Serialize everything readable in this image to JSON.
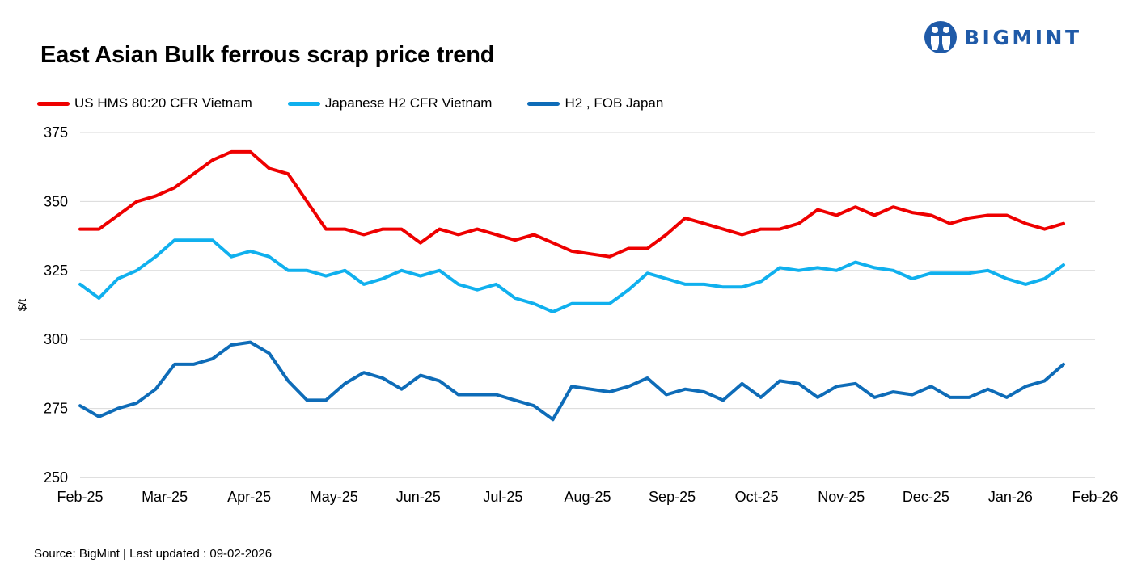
{
  "title": "East Asian Bulk ferrous scrap price trend",
  "logo": {
    "text": "BIGMINT",
    "color": "#1f5aa8"
  },
  "source": "Source: BigMint  | Last updated : 09-02-2026",
  "chart_data": {
    "type": "line",
    "title": "East Asian Bulk ferrous scrap price trend",
    "xlabel": "",
    "ylabel": "$/t",
    "ylim": [
      250,
      375
    ],
    "yticks": [
      250,
      275,
      300,
      325,
      350,
      375
    ],
    "grid": true,
    "legend_position": "top-left",
    "month_labels": [
      "Feb-25",
      "Mar-25",
      "Apr-25",
      "May-25",
      "Jun-25",
      "Jul-25",
      "Aug-25",
      "Sep-25",
      "Oct-25",
      "Nov-25",
      "Dec-25",
      "Jan-26",
      "Feb-26"
    ],
    "series": [
      {
        "name": "US HMS 80:20 CFR Vietnam",
        "color": "#ee0000",
        "values": [
          340,
          340,
          345,
          350,
          352,
          355,
          360,
          365,
          368,
          368,
          362,
          360,
          350,
          340,
          340,
          338,
          340,
          340,
          335,
          340,
          338,
          340,
          338,
          336,
          338,
          335,
          332,
          331,
          330,
          333,
          333,
          338,
          344,
          342,
          340,
          338,
          340,
          340,
          342,
          347,
          345,
          348,
          345,
          348,
          346,
          345,
          342,
          344,
          345,
          345,
          342,
          340,
          342
        ]
      },
      {
        "name": "Japanese H2 CFR Vietnam",
        "color": "#10b0ee",
        "values": [
          320,
          315,
          322,
          325,
          330,
          336,
          336,
          336,
          330,
          332,
          330,
          325,
          325,
          323,
          325,
          320,
          322,
          325,
          323,
          325,
          320,
          318,
          320,
          315,
          313,
          310,
          313,
          313,
          313,
          318,
          324,
          322,
          320,
          320,
          319,
          319,
          321,
          326,
          325,
          326,
          325,
          328,
          326,
          325,
          322,
          324,
          324,
          324,
          325,
          322,
          320,
          322,
          327
        ]
      },
      {
        "name": "H2 , FOB Japan",
        "color": "#0e6cb8",
        "values": [
          276,
          272,
          275,
          277,
          282,
          291,
          291,
          293,
          298,
          299,
          295,
          285,
          278,
          278,
          284,
          288,
          286,
          282,
          287,
          285,
          280,
          280,
          280,
          278,
          276,
          271,
          283,
          282,
          281,
          283,
          286,
          280,
          282,
          281,
          278,
          284,
          279,
          285,
          284,
          279,
          283,
          284,
          279,
          281,
          280,
          283,
          279,
          279,
          282,
          279,
          283,
          285,
          291
        ]
      }
    ]
  }
}
